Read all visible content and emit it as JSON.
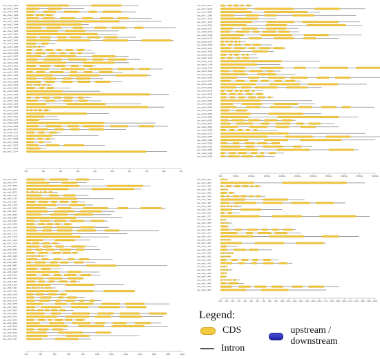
{
  "panels": [
    {
      "id": "top-left",
      "genes": [
        "Lsa_chr13_1943",
        "Lsa_chr13_1944",
        "Lsa_chr13_1957",
        "Lsa_chr13_1958",
        "Lsa_chr13_1962",
        "Lsa_chr13_1963",
        "Lsa_chr13_1964",
        "Lsa_chr13_1965",
        "Lsa_chr13_1969",
        "Lsa_chr13_1970",
        "Lsa_chr13_1984",
        "Lsa_chr13_1991",
        "Lsa_chr13_1992",
        "Lsa_chr13_2006",
        "Lsa_chr13_2013",
        "Lsa_chr13_2025",
        "Lsa_chr13_2037",
        "Lsa_chr11_2039",
        "Lsa_chr13_0762",
        "Lsa_chr13_1010",
        "Lsa_chr13_1221",
        "Lsa_chr13_1323",
        "Lsa_chr13_1426",
        "Lsa_chr13_1512",
        "Lsa_chr13_2003",
        "Lsa_chr13_2022",
        "Lsa_chr13_2024",
        "Lsa_chr14_0223",
        "Lsa_chr14_1236",
        "Lsa_chr14_1238",
        "Lsa_chr15_1234",
        "Lsa_chr15_1326",
        "Lsa_chr15_1378",
        "Lsa_chr15_0513",
        "Lsa_chr15_0524",
        "Lsa_chr15_1041",
        "Lsa_chr15_1140",
        "Lsa_chr16_0337",
        "Lsa_chr16_0499",
        "Lsa_chr16_0671",
        "Lsa_chr16_1112",
        "Lsa_chr16_1121",
        "Lsa_chr17_0009",
        "Lsa_chr17_0044",
        "Lsa_chr17_0067",
        "Lsa_chr17_0054",
        "Lsa_chr17_0774"
      ],
      "ticks": [
        "0kb",
        "1kb",
        "2kb",
        "3kb",
        "4kb",
        "5kb",
        "6kb",
        "7kb",
        "8kb",
        "9kb"
      ]
    },
    {
      "id": "top-right",
      "genes": [
        "Lsa_chr17_0277",
        "Lsa_chr17_0279",
        "Lsa_chr17_0357",
        "Lsa_chr17_1146",
        "Lsa_chr17_1170",
        "Lsa_chr17_1175",
        "Lsa_chr18_0016",
        "Lsa_chr18_0017",
        "Lsa_chr18_0046",
        "Lsa_chr18_0158",
        "Lsa_chr18_0179",
        "Lsa_chr18_0204",
        "Lsa_chr18_0230",
        "Lsa_chr18_0247",
        "Lsa_chr18_1063",
        "Lsa_chr18_1728",
        "Lsa_chr18_1729",
        "Lsa_chr18_1763",
        "Lsa_chr18_1764",
        "Lsa_chr18_1770",
        "Lsa_chr19_0023",
        "Lsa_chr19_0130",
        "Lsa_chr19_0165",
        "Lsa_chr19_0173",
        "Lsa_chr19_0201",
        "Lsa_chr19_0202",
        "Lsa_chr19_0241",
        "Lsa_chr19_0275",
        "Lsa_chr19_0276",
        "Lsa_chr19_0350",
        "Lsa_chr19_0381",
        "Lsa_chr19_0492",
        "Lsa_chr19_0514",
        "Lsa_chr19_0582",
        "Lsa_chr19_0683",
        "Lsa_chr19_0697",
        "Lsa_chr20_0075",
        "Lsa_chr20_0091",
        "Lsa_chr20_0156",
        "Lsa_chr20_0173",
        "Lsa_chr20_0187",
        "Lsa_chr20_0192",
        "Lsa_chr20_0200",
        "Lsa_chr20_0203",
        "Lsa_chr20_0206",
        "Lsa_chr20_0208",
        "Lsa_chr20_0299"
      ],
      "ticks": [
        "0kb",
        "500bp",
        "1000bp",
        "1500bp",
        "2000bp",
        "2500bp",
        "3000bp",
        "3500bp",
        "4000bp",
        "4500bp",
        "5000bp"
      ]
    },
    {
      "id": "bottom-left",
      "genes": [
        "Lsa_chr4_0192",
        "Lsa_chr4_0774",
        "Lsa_chr5_0059",
        "Lsa_chr5_0071",
        "Lsa_chr5_0073",
        "Lsa_chr5_1214",
        "Lsa_chr5_1232",
        "Lsa_chr5_1567",
        "Lsa_chr5_1570",
        "Lsa_chr5_1594",
        "Lsa_chr6_0027",
        "Lsa_chr6_0082",
        "Lsa_chr6_0086",
        "Lsa_chr6_1004",
        "Lsa_chr6_1033",
        "Lsa_chr7_1058",
        "Lsa_chr7_1129",
        "Lsa_chr7_1171",
        "Lsa_chr7_1173",
        "Lsa_chr7_1182",
        "Lsa_chr7_1214",
        "Lsa_chr8_0091",
        "Lsa_chr8_0092",
        "Lsa_chr8_0134",
        "Lsa_chr8_0149",
        "Lsa_chr8_0151",
        "Lsa_chr8_0860",
        "Lsa_chr8_0887",
        "Lsa_chr8_0909",
        "Lsa_chr8_1018",
        "Lsa_chr8_1157",
        "Lsa_chr8_1164",
        "Lsa_chr8_1209",
        "Lsa_chr8_1312",
        "Lsa_chr8_1337",
        "Lsa_chr8_1391",
        "Lsa_chr9_0130",
        "Lsa_chr9_0261",
        "Lsa_chr9_0279",
        "Lsa_chr9_0378",
        "Lsa_chr9_0529",
        "Lsa_chr9_0552",
        "Lsa_chr9_0646",
        "Lsa_chr9_0701",
        "Lsa_chr9_0760",
        "Lsa_chr9_0808",
        "Lsa_chr9_0810",
        "Lsa_chr9_0831",
        "Lsa_chr9_0919",
        "Lsa_chr9_1030",
        "Lsa_chr9_1247"
      ],
      "ticks": [
        "0kb",
        "2kb",
        "4kb",
        "6kb",
        "8kb",
        "10kb",
        "12kb",
        "14kb",
        "16kb",
        "18kb",
        "20kb",
        "22kb"
      ]
    },
    {
      "id": "bottom-right",
      "genes": [
        "Lsa_chr9_1263",
        "Lsa_chr9_1264",
        "Lsa_chr9_1340",
        "Lsa_chr9_1342",
        "Lsa_chr9_1343",
        "Lsa_chr9_1344",
        "Lsa_chr9_1356",
        "Lsa_chr9_1357",
        "Lsa_chr9_1358",
        "Lsa_chr9_1369",
        "Lsa_chr9_1371",
        "Lsa_chr9_1377",
        "Lsa_chr9_1380",
        "Lsa_chr9_1405",
        "Lsa_chr9_1406",
        "Lsa_chr9_1407",
        "Lsa_chr9_1414",
        "Lsa_chr9_1415",
        "Lsa_chr9_1416",
        "Lsa_chr9_1421",
        "Lsa_chr9_1422",
        "Lsa_chr9_1427",
        "Lsa_chr9_1429",
        "Lsa_chr9_1431",
        "Lsa_chr9_1432",
        "Lsa_chr9_1433",
        "Lsa_chr9_1435",
        "Lsa_chr9_1437",
        "Lsa_chr9_1438",
        "Lsa_chr9_1442",
        "Lsa_chr9_1443",
        "Lsa_chr9_1444",
        "Lsa_chr9_1446",
        "Lsa_chr9_1452"
      ],
      "ticks": [
        "0kb",
        "1kb",
        "2kb",
        "3kb",
        "4kb",
        "5kb",
        "6kb",
        "7kb",
        "8kb",
        "9kb",
        "10kb",
        "11kb",
        "12kb",
        "13kb",
        "14kb",
        "15kb",
        "16kb",
        "17kb",
        "18kb",
        "19kb",
        "20kb",
        "21kb",
        "22kb",
        "23kb",
        "24kb",
        "25kb"
      ]
    }
  ],
  "legend": {
    "title": "Legend:",
    "cds": "CDS",
    "upstream_downstream": "upstream / downstream",
    "intron": "Intron"
  },
  "colors": {
    "cds": "#f0c436",
    "upstream_downstream": "#2a2fb8",
    "intron": "#888888"
  }
}
